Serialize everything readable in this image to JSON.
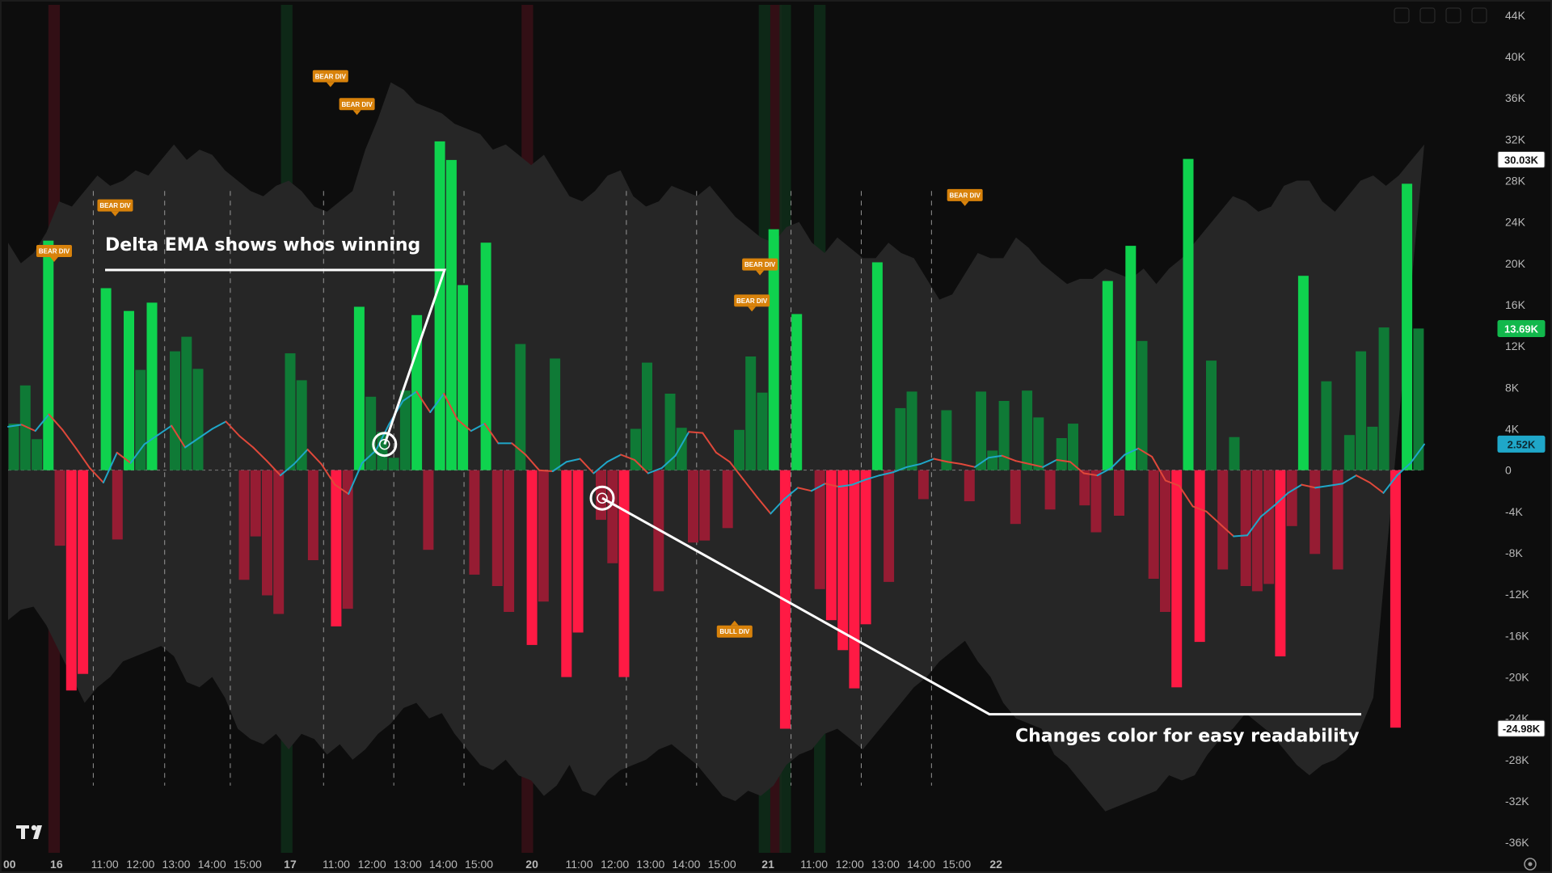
{
  "chart_data": {
    "type": "bar",
    "ylim": [
      -37000,
      45000
    ],
    "y_ticks": [
      44000,
      40000,
      36000,
      32000,
      28000,
      24000,
      20000,
      16000,
      12000,
      8000,
      4000,
      0,
      -4000,
      -8000,
      -12000,
      -16000,
      -20000,
      -24000,
      -28000,
      -32000,
      -36000
    ],
    "y_tick_labels": [
      "44K",
      "40K",
      "36K",
      "32K",
      "28K",
      "24K",
      "20K",
      "16K",
      "12K",
      "8K",
      "4K",
      "0",
      "-4K",
      "-8K",
      "-12K",
      "-16K",
      "-20K",
      "-24K",
      "-28K",
      "-32K",
      "-36K"
    ],
    "x_labels": [
      "00",
      "16",
      "11:00",
      "12:00",
      "13:00",
      "14:00",
      "15:00",
      "17",
      "11:00",
      "12:00",
      "13:00",
      "14:00",
      "15:00",
      "20",
      "11:00",
      "12:00",
      "13:00",
      "14:00",
      "15:00",
      "21",
      "11:00",
      "12:00",
      "13:00",
      "14:00",
      "15:00",
      "22"
    ],
    "x_label_index": [
      0,
      3.7,
      7.9,
      11.0,
      14.1,
      17.2,
      20.3,
      24.0,
      28.0,
      31.1,
      34.2,
      37.3,
      40.4,
      45.0,
      49.1,
      52.2,
      55.3,
      58.4,
      61.5,
      65.5,
      69.5,
      72.6,
      75.7,
      78.8,
      81.9,
      85.3
    ],
    "bars": [
      4500,
      8200,
      3000,
      22200,
      -7300,
      -21300,
      -19700,
      0,
      17600,
      -6700,
      15400,
      9700,
      16200,
      0,
      11500,
      12900,
      9800,
      0,
      0,
      0,
      -10600,
      -6400,
      -12100,
      -13900,
      11300,
      8700,
      -8700,
      0,
      -15100,
      -13400,
      15800,
      7100,
      3700,
      1200,
      7700,
      15000,
      -7700,
      31800,
      30000,
      17900,
      -10100,
      22000,
      -11200,
      -13700,
      12200,
      -16900,
      -12700,
      10800,
      -20000,
      -15700,
      0,
      -4800,
      -9000,
      -20000,
      4000,
      10400,
      -11700,
      7400,
      4100,
      -7000,
      -6800,
      0,
      -5600,
      3900,
      11000,
      7500,
      23300,
      -25000,
      15100,
      0,
      -11500,
      -14500,
      -17400,
      -21100,
      -14900,
      20100,
      -10800,
      6000,
      7600,
      -2800,
      0,
      5800,
      0,
      -3000,
      7600,
      1900,
      6700,
      -5200,
      7700,
      5100,
      -3800,
      3100,
      4500,
      -3400,
      -6000,
      18300,
      -4400,
      21700,
      12500,
      -10500,
      -13700,
      -21000,
      30100,
      -16600,
      10600,
      -9600,
      3200,
      -11200,
      -11700,
      -11000,
      -18000,
      -5400,
      18800,
      -8100,
      8600,
      -9600,
      3400,
      11500,
      4200,
      13800,
      -24900,
      27700,
      13700
    ],
    "bars_color": {
      "pos_strong": "#0fd24e",
      "pos_weak": "#0f7a36",
      "neg_strong": "#ff1a44",
      "neg_weak": "#961c33"
    },
    "ema": [
      4200,
      4400,
      3800,
      5400,
      3900,
      2100,
      200,
      -1200,
      1700,
      700,
      2500,
      3400,
      4300,
      2200,
      3100,
      4000,
      4700,
      3300,
      2200,
      900,
      -500,
      600,
      2000,
      600,
      -1400,
      -2300,
      700,
      1900,
      4500,
      6700,
      7600,
      5600,
      7400,
      4900,
      3800,
      4500,
      2600,
      2600,
      1500,
      0,
      -100,
      800,
      1100,
      -300,
      800,
      1500,
      1000,
      -300,
      200,
      1400,
      3700,
      3600,
      1700,
      800,
      -900,
      -2600,
      -4200,
      -2800,
      -1700,
      -2000,
      -1300,
      -1600,
      -1400,
      -900,
      -500,
      -200,
      300,
      600,
      1100,
      800,
      600,
      300,
      1200,
      1400,
      900,
      600,
      300,
      1000,
      800,
      -300,
      -500,
      200,
      1500,
      2100,
      1300,
      -1000,
      -1500,
      -3500,
      -4000,
      -5200,
      -6400,
      -6300,
      -4500,
      -3400,
      -2200,
      -1400,
      -1700,
      -1500,
      -1300,
      -500,
      -1200,
      -2200,
      -500,
      700,
      2500
    ],
    "ema_color_up": "#1fa7c9",
    "ema_color_down": "#e0483a",
    "band_upper": [
      22000,
      20000,
      21000,
      23000,
      26000,
      25500,
      27000,
      28500,
      27500,
      28000,
      29000,
      28500,
      30000,
      31500,
      30000,
      31000,
      30500,
      29000,
      28000,
      27000,
      26500,
      27500,
      28000,
      27000,
      25500,
      25000,
      26000,
      27000,
      31000,
      34000,
      37500,
      36800,
      35500,
      35000,
      34500,
      33500,
      33000,
      32500,
      31000,
      31500,
      30500,
      29500,
      30500,
      28500,
      26500,
      26000,
      27000,
      28500,
      29000,
      26500,
      25500,
      26000,
      27500,
      27000,
      26500,
      27500,
      26000,
      24500,
      23500,
      22500,
      22000,
      23500,
      24000,
      22000,
      21000,
      22500,
      21500,
      20500,
      20500,
      22000,
      21000,
      20500,
      18500,
      16500,
      17000,
      19000,
      21000,
      20500,
      20500,
      22500,
      21500,
      20000,
      19000,
      18000,
      18500,
      18500,
      19500,
      19000,
      18500,
      19500,
      18000,
      19500,
      20500,
      22000,
      23500,
      25000,
      26500,
      26000,
      25000,
      25500,
      27500,
      28000,
      28000,
      26000,
      25000,
      26500,
      28000,
      28500,
      27500,
      28500,
      30000,
      31500
    ],
    "band_lower": [
      -14500,
      -13500,
      -13200,
      -15000,
      -17500,
      -20000,
      -22500,
      -21000,
      -20000,
      -18500,
      -18000,
      -17500,
      -17000,
      -18000,
      -20500,
      -21000,
      -20000,
      -22000,
      -25000,
      -26000,
      -26500,
      -25500,
      -27000,
      -25500,
      -26000,
      -27500,
      -26500,
      -28000,
      -27000,
      -25500,
      -24500,
      -23000,
      -22500,
      -24000,
      -23500,
      -25500,
      -27000,
      -28500,
      -29000,
      -28000,
      -29500,
      -30000,
      -31500,
      -30500,
      -28500,
      -31000,
      -31500,
      -30000,
      -29000,
      -28500,
      -28000,
      -27000,
      -26500,
      -27500,
      -28500,
      -30000,
      -31500,
      -32000,
      -31000,
      -31500,
      -30500,
      -28500,
      -27500,
      -27000,
      -25500,
      -25000,
      -26000,
      -27000,
      -25500,
      -24000,
      -22500,
      -21000,
      -20000,
      -18500,
      -17500,
      -16500,
      -18500,
      -20000,
      -22500,
      -24000,
      -24500,
      -25000,
      -27500,
      -28500,
      -30000,
      -31500,
      -33000,
      -32500,
      -32000,
      -31500,
      -31000,
      -29500,
      -30000,
      -29500,
      -27500,
      -26000,
      -25000,
      -23500,
      -24500,
      -25500,
      -27000,
      -28500,
      -29500,
      -28500,
      -28000,
      -27000,
      -25000,
      -22000
    ],
    "highlights": [
      {
        "index": 3.5,
        "color": "red"
      },
      {
        "index": 23.7,
        "color": "green"
      },
      {
        "index": 44.6,
        "color": "red"
      },
      {
        "index": 65.2,
        "color": "green"
      },
      {
        "index": 66.2,
        "color": "red"
      },
      {
        "index": 67.0,
        "color": "green"
      },
      {
        "index": 70.0,
        "color": "green"
      }
    ],
    "dashed_lines_index": [
      6.9,
      13.1,
      18.8,
      26.9,
      33.0,
      39.1,
      53.2,
      59.3,
      67.5,
      73.6,
      79.7
    ],
    "signals": [
      {
        "label": "BEAR DIV",
        "index": 3.5,
        "value": 21200,
        "pointer": "down"
      },
      {
        "label": "BEAR DIV",
        "index": 8.8,
        "value": 25600,
        "pointer": "down"
      },
      {
        "label": "BEAR DIV",
        "index": 27.5,
        "value": 38100,
        "pointer": "down"
      },
      {
        "label": "BEAR DIV",
        "index": 29.8,
        "value": 35400,
        "pointer": "down"
      },
      {
        "label": "BEAR DIV",
        "index": 64.1,
        "value": 16400,
        "pointer": "down"
      },
      {
        "label": "BEAR DIV",
        "index": 64.8,
        "value": 19900,
        "pointer": "down"
      },
      {
        "label": "BULL DIV",
        "index": 62.6,
        "value": -15600,
        "pointer": "up"
      },
      {
        "label": "BEAR DIV",
        "index": 82.6,
        "value": 26600,
        "pointer": "down"
      }
    ],
    "price_tags": [
      {
        "label": "30.03K",
        "value": 30030,
        "bg": "#ffffff",
        "fg": "#111111",
        "border": "#444444"
      },
      {
        "label": "13.69K",
        "value": 13690,
        "bg": "#12b84c",
        "fg": "#ffffff",
        "border": "#12b84c"
      },
      {
        "label": "2.52K",
        "value": 2520,
        "bg": "#1fa7c9",
        "fg": "#0d2a33",
        "border": "#1fa7c9"
      },
      {
        "label": "-24.98K",
        "value": -24980,
        "bg": "#ffffff",
        "fg": "#111111",
        "border": "#444444"
      }
    ],
    "annotations": [
      {
        "text": "Delta EMA shows whos winning",
        "index": 5.8,
        "value": 20300,
        "target_index": 32.2,
        "target_value": 2500
      },
      {
        "text": "Changes color for easy readability",
        "index": 59.2,
        "value": -23600,
        "target_index": 51.1,
        "target_value": -2700
      }
    ]
  }
}
